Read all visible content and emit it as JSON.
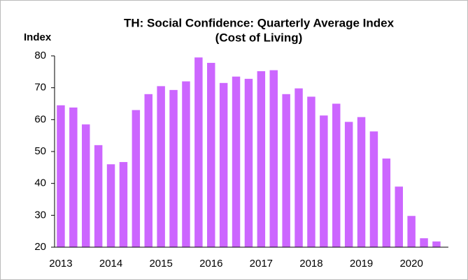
{
  "chart_data": {
    "type": "bar",
    "title": [
      "TH: Social Confidence: Quarterly Average Index",
      "(Cost of Living)"
    ],
    "y_label": "Index",
    "categories": [
      "2013",
      null,
      null,
      null,
      "2014",
      null,
      null,
      null,
      "2015",
      null,
      null,
      null,
      "2016",
      null,
      null,
      null,
      "2017",
      null,
      null,
      null,
      "2018",
      null,
      null,
      null,
      "2019",
      null,
      null,
      null,
      "2020",
      null,
      null
    ],
    "values": [
      64.5,
      63.8,
      58.5,
      52,
      46,
      46.7,
      63,
      68,
      70.5,
      69.3,
      72,
      79.5,
      77.8,
      71.5,
      73.5,
      72.8,
      75.2,
      75.5,
      68,
      69.8,
      67.2,
      61.3,
      65,
      59.3,
      60.8,
      56.3,
      47.8,
      39,
      29.8,
      22.8,
      21.8
    ],
    "color": "#cc66ff",
    "ylim": [
      20,
      80
    ],
    "yticks": [
      20,
      30,
      40,
      50,
      60,
      70,
      80
    ],
    "grid": false
  }
}
